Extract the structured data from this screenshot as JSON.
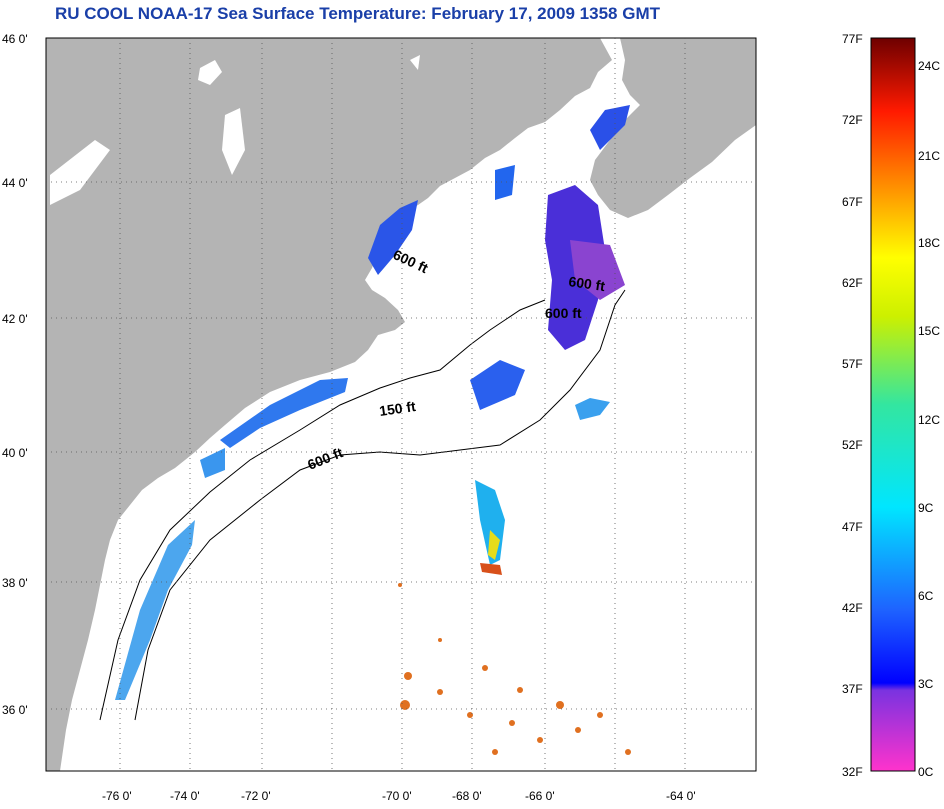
{
  "title": "RU COOL  NOAA-17  Sea Surface Temperature:  February 17, 2009 1358 GMT",
  "lat_labels": [
    "46 0'",
    "44 0'",
    "42 0'",
    "40 0'",
    "38 0'",
    "36 0'"
  ],
  "lon_labels": [
    "-76 0'",
    "-74 0'",
    "-72 0'",
    "-70 0'",
    "-68 0'",
    "-66 0'",
    "-64 0'"
  ],
  "contours": {
    "c150": "150 ft",
    "c600a": "600 ft",
    "c600b": "600 ft",
    "c600c": "600 ft",
    "c600d": "600 ft"
  },
  "colorbar": {
    "f_labels": [
      "77F",
      "72F",
      "67F",
      "62F",
      "57F",
      "52F",
      "47F",
      "42F",
      "37F",
      "32F"
    ],
    "c_labels": [
      "24C",
      "21C",
      "18C",
      "15C",
      "12C",
      "9C",
      "6C",
      "3C",
      "0C"
    ]
  },
  "colors": {
    "land": "#b4b4b4",
    "ocean": "#ffffff",
    "title": "#1a3fa8"
  }
}
